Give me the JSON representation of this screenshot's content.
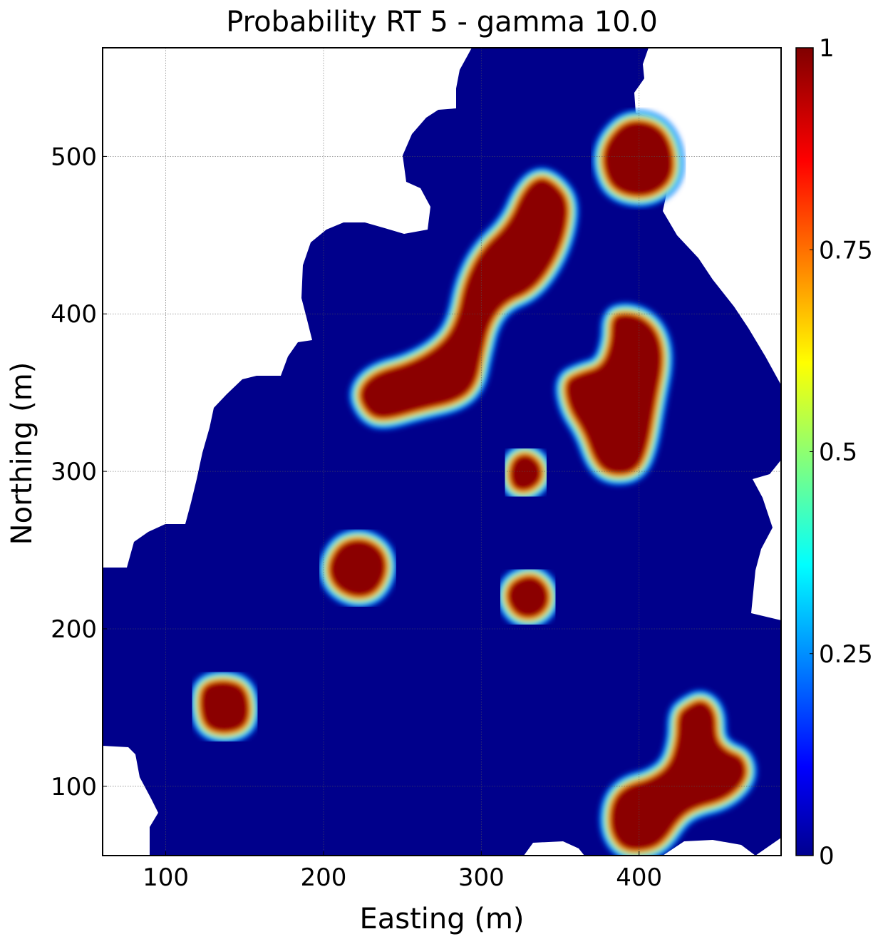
{
  "chart_data": {
    "type": "heatmap",
    "title": "Probability RT 5 - gamma 10.0",
    "xlabel": "Easting (m)",
    "ylabel": "Northing (m)",
    "xlim": [
      60,
      490
    ],
    "ylim": [
      56,
      569
    ],
    "xticks": [
      100,
      200,
      300,
      400
    ],
    "yticks": [
      100,
      200,
      300,
      400,
      500
    ],
    "grid": true,
    "colormap": "jet",
    "background_value": 0,
    "colorbar": {
      "range": [
        0,
        1
      ],
      "ticks": [
        {
          "value": 0,
          "label": "0"
        },
        {
          "value": 0.25,
          "label": "0.25"
        },
        {
          "value": 0.5,
          "label": "0.5"
        },
        {
          "value": 0.75,
          "label": "0.75"
        },
        {
          "value": 1,
          "label": "1"
        }
      ]
    },
    "high_probability_zones": [
      {
        "name": "zone-ne-top",
        "outline": [
          [
            380,
            510
          ],
          [
            393,
            523
          ],
          [
            412,
            520
          ],
          [
            421,
            505
          ],
          [
            421,
            485
          ],
          [
            405,
            474
          ],
          [
            384,
            478
          ],
          [
            377,
            495
          ]
        ]
      },
      {
        "name": "zone-diagonal-main",
        "outline": [
          [
            337,
            487
          ],
          [
            347,
            482
          ],
          [
            355,
            471
          ],
          [
            353,
            452
          ],
          [
            345,
            432
          ],
          [
            332,
            415
          ],
          [
            315,
            408
          ],
          [
            305,
            395
          ],
          [
            300,
            375
          ],
          [
            296,
            355
          ],
          [
            285,
            345
          ],
          [
            262,
            340
          ],
          [
            238,
            333
          ],
          [
            228,
            337
          ],
          [
            222,
            350
          ],
          [
            232,
            362
          ],
          [
            255,
            368
          ],
          [
            275,
            380
          ],
          [
            285,
            395
          ],
          [
            290,
            420
          ],
          [
            300,
            440
          ],
          [
            318,
            457
          ],
          [
            327,
            478
          ]
        ]
      },
      {
        "name": "zone-east-middle",
        "outline": [
          [
            383,
            398
          ],
          [
            392,
            400
          ],
          [
            403,
            397
          ],
          [
            412,
            387
          ],
          [
            415,
            370
          ],
          [
            410,
            345
          ],
          [
            405,
            315
          ],
          [
            398,
            300
          ],
          [
            383,
            298
          ],
          [
            373,
            305
          ],
          [
            366,
            325
          ],
          [
            356,
            340
          ],
          [
            353,
            357
          ],
          [
            363,
            362
          ],
          [
            377,
            366
          ],
          [
            383,
            382
          ]
        ]
      },
      {
        "name": "zone-small-center",
        "outline": [
          [
            321,
            308
          ],
          [
            329,
            311
          ],
          [
            337,
            305
          ],
          [
            338,
            295
          ],
          [
            330,
            288
          ],
          [
            321,
            289
          ],
          [
            318,
            298
          ]
        ]
      },
      {
        "name": "zone-west-center",
        "outline": [
          [
            211,
            254
          ],
          [
            225,
            257
          ],
          [
            237,
            250
          ],
          [
            240,
            237
          ],
          [
            233,
            223
          ],
          [
            220,
            220
          ],
          [
            207,
            227
          ],
          [
            203,
            240
          ]
        ]
      },
      {
        "name": "zone-center-lower",
        "outline": [
          [
            320,
            230
          ],
          [
            333,
            234
          ],
          [
            342,
            226
          ],
          [
            342,
            214
          ],
          [
            333,
            207
          ],
          [
            322,
            209
          ],
          [
            316,
            220
          ]
        ]
      },
      {
        "name": "zone-west-lower",
        "outline": [
          [
            124,
            164
          ],
          [
            137,
            167
          ],
          [
            150,
            163
          ],
          [
            153,
            147
          ],
          [
            149,
            137
          ],
          [
            136,
            134
          ],
          [
            125,
            138
          ],
          [
            122,
            152
          ]
        ]
      },
      {
        "name": "zone-se",
        "outline": [
          [
            430,
            150
          ],
          [
            440,
            155
          ],
          [
            448,
            147
          ],
          [
            448,
            130
          ],
          [
            455,
            122
          ],
          [
            466,
            118
          ],
          [
            468,
            105
          ],
          [
            455,
            92
          ],
          [
            435,
            87
          ],
          [
            425,
            80
          ],
          [
            415,
            65
          ],
          [
            405,
            60
          ],
          [
            390,
            60
          ],
          [
            382,
            72
          ],
          [
            383,
            90
          ],
          [
            392,
            100
          ],
          [
            408,
            104
          ],
          [
            420,
            113
          ],
          [
            425,
            130
          ],
          [
            425,
            145
          ]
        ]
      }
    ]
  }
}
